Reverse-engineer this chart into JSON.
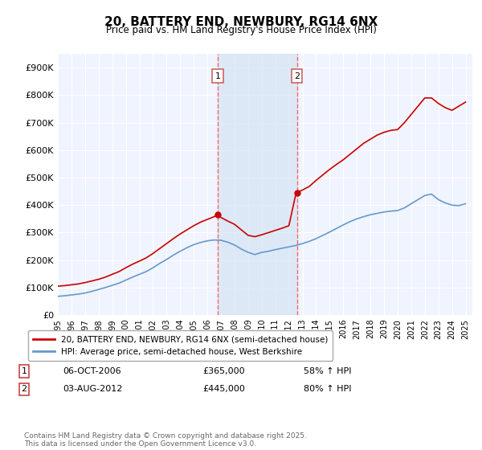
{
  "title": "20, BATTERY END, NEWBURY, RG14 6NX",
  "subtitle": "Price paid vs. HM Land Registry's House Price Index (HPI)",
  "ylabel_ticks": [
    "£0",
    "£100K",
    "£200K",
    "£300K",
    "£400K",
    "£500K",
    "£600K",
    "£700K",
    "£800K",
    "£900K"
  ],
  "ytick_values": [
    0,
    100000,
    200000,
    300000,
    400000,
    500000,
    600000,
    700000,
    800000,
    900000
  ],
  "ylim": [
    0,
    950000
  ],
  "xlim_start": 1995.0,
  "xlim_end": 2025.5,
  "bg_color": "#ffffff",
  "plot_bg_color": "#f0f4ff",
  "grid_color": "#ffffff",
  "red_line_color": "#cc0000",
  "blue_line_color": "#6699cc",
  "shade_color": "#d0e0f0",
  "vline_color": "#ff6666",
  "marker1_x": 2006.76,
  "marker1_y": 365000,
  "marker2_x": 2012.59,
  "marker2_y": 445000,
  "marker1_label": "1",
  "marker2_label": "2",
  "legend_line1": "20, BATTERY END, NEWBURY, RG14 6NX (semi-detached house)",
  "legend_line2": "HPI: Average price, semi-detached house, West Berkshire",
  "table_row1": "1    06-OCT-2006         £365,000         58% ↑ HPI",
  "table_row2": "2    03-AUG-2012         £445,000         80% ↑ HPI",
  "footer": "Contains HM Land Registry data © Crown copyright and database right 2025.\nThis data is licensed under the Open Government Licence v3.0.",
  "years_x": [
    1995,
    1996,
    1997,
    1998,
    1999,
    2000,
    2001,
    2002,
    2003,
    2004,
    2005,
    2006,
    2007,
    2008,
    2009,
    2010,
    2011,
    2012,
    2013,
    2014,
    2015,
    2016,
    2017,
    2018,
    2019,
    2020,
    2021,
    2022,
    2023,
    2024,
    2025
  ],
  "red_data": {
    "x": [
      1995.0,
      1995.5,
      1996.0,
      1996.5,
      1997.0,
      1997.5,
      1998.0,
      1998.5,
      1999.0,
      1999.5,
      2000.0,
      2000.5,
      2001.0,
      2001.5,
      2002.0,
      2002.5,
      2003.0,
      2003.5,
      2004.0,
      2004.5,
      2005.0,
      2005.5,
      2006.0,
      2006.5,
      2006.76,
      2007.0,
      2007.5,
      2008.0,
      2008.5,
      2009.0,
      2009.5,
      2010.0,
      2010.5,
      2011.0,
      2011.5,
      2012.0,
      2012.5,
      2012.59,
      2013.0,
      2013.5,
      2014.0,
      2014.5,
      2015.0,
      2015.5,
      2016.0,
      2016.5,
      2017.0,
      2017.5,
      2018.0,
      2018.5,
      2019.0,
      2019.5,
      2020.0,
      2020.5,
      2021.0,
      2021.5,
      2022.0,
      2022.5,
      2023.0,
      2023.5,
      2024.0,
      2024.5,
      2025.0
    ],
    "y": [
      105000,
      107000,
      110000,
      113000,
      118000,
      124000,
      130000,
      138000,
      148000,
      158000,
      172000,
      185000,
      196000,
      208000,
      224000,
      242000,
      260000,
      278000,
      295000,
      310000,
      325000,
      338000,
      348000,
      358000,
      365000,
      355000,
      342000,
      330000,
      310000,
      290000,
      285000,
      292000,
      300000,
      308000,
      316000,
      325000,
      438000,
      445000,
      455000,
      468000,
      490000,
      510000,
      530000,
      548000,
      565000,
      585000,
      605000,
      625000,
      640000,
      655000,
      665000,
      672000,
      675000,
      700000,
      730000,
      760000,
      790000,
      790000,
      770000,
      755000,
      745000,
      760000,
      775000
    ]
  },
  "blue_data": {
    "x": [
      1995.0,
      1995.5,
      1996.0,
      1996.5,
      1997.0,
      1997.5,
      1998.0,
      1998.5,
      1999.0,
      1999.5,
      2000.0,
      2000.5,
      2001.0,
      2001.5,
      2002.0,
      2002.5,
      2003.0,
      2003.5,
      2004.0,
      2004.5,
      2005.0,
      2005.5,
      2006.0,
      2006.5,
      2007.0,
      2007.5,
      2008.0,
      2008.5,
      2009.0,
      2009.5,
      2010.0,
      2010.5,
      2011.0,
      2011.5,
      2012.0,
      2012.5,
      2013.0,
      2013.5,
      2014.0,
      2014.5,
      2015.0,
      2015.5,
      2016.0,
      2016.5,
      2017.0,
      2017.5,
      2018.0,
      2018.5,
      2019.0,
      2019.5,
      2020.0,
      2020.5,
      2021.0,
      2021.5,
      2022.0,
      2022.5,
      2023.0,
      2023.5,
      2024.0,
      2024.5,
      2025.0
    ],
    "y": [
      68000,
      70000,
      73000,
      76000,
      80000,
      86000,
      93000,
      100000,
      108000,
      116000,
      127000,
      138000,
      148000,
      158000,
      172000,
      188000,
      202000,
      218000,
      232000,
      245000,
      256000,
      264000,
      270000,
      273000,
      272000,
      265000,
      255000,
      240000,
      228000,
      220000,
      228000,
      232000,
      238000,
      243000,
      248000,
      253000,
      260000,
      268000,
      278000,
      290000,
      302000,
      315000,
      328000,
      340000,
      350000,
      358000,
      365000,
      370000,
      375000,
      378000,
      380000,
      390000,
      405000,
      420000,
      435000,
      440000,
      420000,
      408000,
      400000,
      398000,
      405000
    ]
  }
}
